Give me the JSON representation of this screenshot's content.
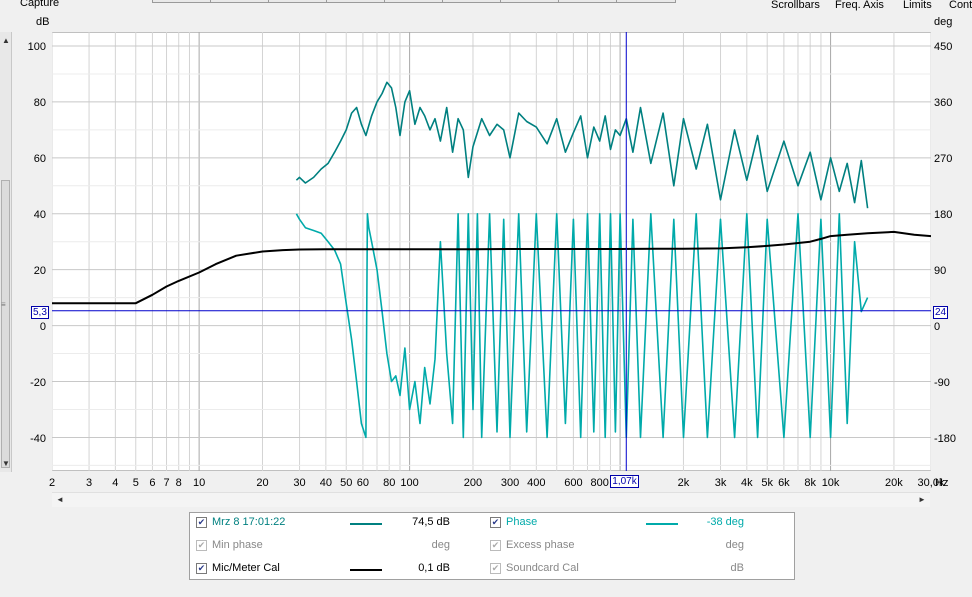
{
  "header": {
    "capture_label": "Capture",
    "links": [
      "Scrollbars",
      "Freq. Axis",
      "Limits",
      "Contr"
    ]
  },
  "chart_data": {
    "type": "line",
    "left_axis_unit": "dB",
    "right_axis_unit": "deg",
    "x_unit": "Hz",
    "x_scale": "log",
    "xlim": [
      2,
      30000
    ],
    "ylim": [
      -52,
      105
    ],
    "y_ticks": [
      100,
      80,
      60,
      40,
      20,
      0,
      -20,
      -40
    ],
    "y_tick_labels": [
      "100",
      "80",
      "60",
      "40",
      "20",
      "0",
      "-20",
      "-40"
    ],
    "right_ticks": [
      "450",
      "360",
      "270",
      "180",
      "90",
      "0",
      "-90",
      "-180"
    ],
    "x_ticks": [
      2,
      3,
      4,
      5,
      6,
      7,
      8,
      10,
      20,
      30,
      40,
      50,
      60,
      80,
      100,
      200,
      300,
      400,
      600,
      800,
      2000,
      3000,
      4000,
      5000,
      6000,
      8000,
      10000,
      20000,
      30000
    ],
    "x_tick_labels": [
      "2",
      "3",
      "4",
      "5",
      "6",
      "7",
      "8",
      "10",
      "20",
      "30",
      "40",
      "50",
      "60",
      "80",
      "100",
      "200",
      "300",
      "400",
      "600",
      "800",
      "2k",
      "3k",
      "4k",
      "5k",
      "6k",
      "8k",
      "10k",
      "20k",
      "30,0k"
    ],
    "grid": true,
    "cursor": {
      "x": 1070,
      "x_label": "1,07k",
      "y": 5.3,
      "y_label_left": "5,3",
      "y_label_right": "24"
    },
    "series": [
      {
        "name": "Mrz 8 17:01:22",
        "color": "#008080",
        "x": [
          29,
          30,
          32,
          35,
          38,
          41,
          44,
          47,
          50,
          53,
          56,
          59,
          62,
          66,
          70,
          74,
          78,
          82,
          86,
          90,
          95,
          100,
          106,
          112,
          118,
          125,
          132,
          140,
          150,
          160,
          170,
          180,
          190,
          200,
          220,
          240,
          260,
          280,
          300,
          330,
          360,
          400,
          450,
          500,
          550,
          600,
          650,
          700,
          750,
          800,
          850,
          900,
          950,
          1000,
          1070,
          1150,
          1250,
          1400,
          1600,
          1800,
          2000,
          2300,
          2600,
          3000,
          3500,
          4000,
          4500,
          5000,
          6000,
          7000,
          8000,
          9000,
          10000,
          11000,
          12000,
          13000,
          14000,
          15000
        ],
        "y": [
          52,
          53,
          51,
          53,
          56,
          58,
          62,
          66,
          70,
          76,
          78,
          72,
          68,
          75,
          80,
          83,
          87,
          85,
          78,
          68,
          80,
          84,
          72,
          78,
          75,
          70,
          74,
          66,
          78,
          62,
          74,
          70,
          53,
          64,
          74,
          68,
          72,
          70,
          60,
          76,
          73,
          71,
          65,
          74,
          62,
          69,
          75,
          60,
          71,
          66,
          75,
          63,
          70,
          68,
          74,
          62,
          78,
          58,
          76,
          50,
          74,
          56,
          72,
          45,
          70,
          52,
          68,
          48,
          66,
          50,
          62,
          45,
          60,
          48,
          58,
          44,
          59,
          42
        ]
      },
      {
        "name": "Phase",
        "color": "#00aaaa",
        "x": [
          29,
          30,
          32,
          35,
          38,
          41,
          44,
          47,
          50,
          53,
          56,
          59,
          62,
          63,
          64,
          66,
          70,
          74,
          78,
          82,
          86,
          90,
          95,
          100,
          106,
          112,
          118,
          125,
          132,
          140,
          150,
          160,
          170,
          180,
          190,
          200,
          210,
          220,
          240,
          260,
          280,
          300,
          330,
          360,
          400,
          450,
          500,
          550,
          600,
          650,
          700,
          750,
          800,
          850,
          900,
          950,
          1000,
          1070,
          1150,
          1250,
          1400,
          1600,
          1800,
          2000,
          2300,
          2600,
          3000,
          3500,
          4000,
          4500,
          5000,
          6000,
          7000,
          8000,
          9000,
          10000,
          11000,
          12000,
          13000,
          14000,
          15000
        ],
        "y": [
          40,
          38,
          35,
          34,
          33,
          30,
          27,
          22,
          8,
          -5,
          -20,
          -35,
          -40,
          40,
          35,
          30,
          20,
          5,
          -10,
          -20,
          -18,
          -25,
          -8,
          -30,
          -20,
          -35,
          -15,
          -28,
          -12,
          30,
          -10,
          -35,
          40,
          -40,
          40,
          -30,
          40,
          -40,
          40,
          -38,
          38,
          -40,
          40,
          -38,
          40,
          -40,
          40,
          -35,
          38,
          -40,
          40,
          -38,
          40,
          -40,
          40,
          -38,
          40,
          -40,
          38,
          -40,
          40,
          -40,
          38,
          -40,
          40,
          -40,
          38,
          -40,
          40,
          -40,
          38,
          -40,
          40,
          -40,
          38,
          -40,
          40,
          -35,
          30,
          5,
          10
        ]
      },
      {
        "name": "Mic/Meter Cal",
        "color": "#000000",
        "x": [
          2,
          3,
          4,
          5,
          6,
          7,
          8,
          10,
          12,
          15,
          20,
          25,
          30,
          40,
          50,
          60,
          80,
          100,
          150,
          200,
          300,
          400,
          600,
          800,
          1000,
          1500,
          2000,
          3000,
          4000,
          5000,
          6000,
          8000,
          9000,
          10000,
          12000,
          15000,
          20000,
          25000,
          30000
        ],
        "y": [
          8,
          8,
          8,
          8,
          11,
          14,
          16,
          19,
          22,
          25,
          26.5,
          27,
          27.2,
          27.3,
          27.3,
          27.3,
          27.3,
          27.3,
          27.3,
          27.3,
          27.4,
          27.4,
          27.4,
          27.4,
          27.4,
          27.5,
          27.5,
          27.6,
          28,
          28.5,
          29,
          30,
          31,
          32,
          32.5,
          33,
          33.5,
          32.5,
          32
        ]
      }
    ]
  },
  "legend": {
    "rows": [
      {
        "checked": true,
        "label": "Mrz 8 17:01:22",
        "color": "#008080",
        "value": "74,5 dB",
        "enabled": true
      },
      {
        "checked": true,
        "label": "Phase",
        "color": "#00aaaa",
        "value": "-38 deg",
        "enabled": true
      },
      {
        "checked": true,
        "label": "Min phase",
        "color": "",
        "value": "deg",
        "enabled": false
      },
      {
        "checked": true,
        "label": "Excess phase",
        "color": "",
        "value": "deg",
        "enabled": false
      },
      {
        "checked": true,
        "label": "Mic/Meter Cal",
        "color": "#000000",
        "value": "0,1 dB",
        "enabled": true
      },
      {
        "checked": true,
        "label": "Soundcard Cal",
        "color": "",
        "value": "dB",
        "enabled": false
      }
    ]
  }
}
